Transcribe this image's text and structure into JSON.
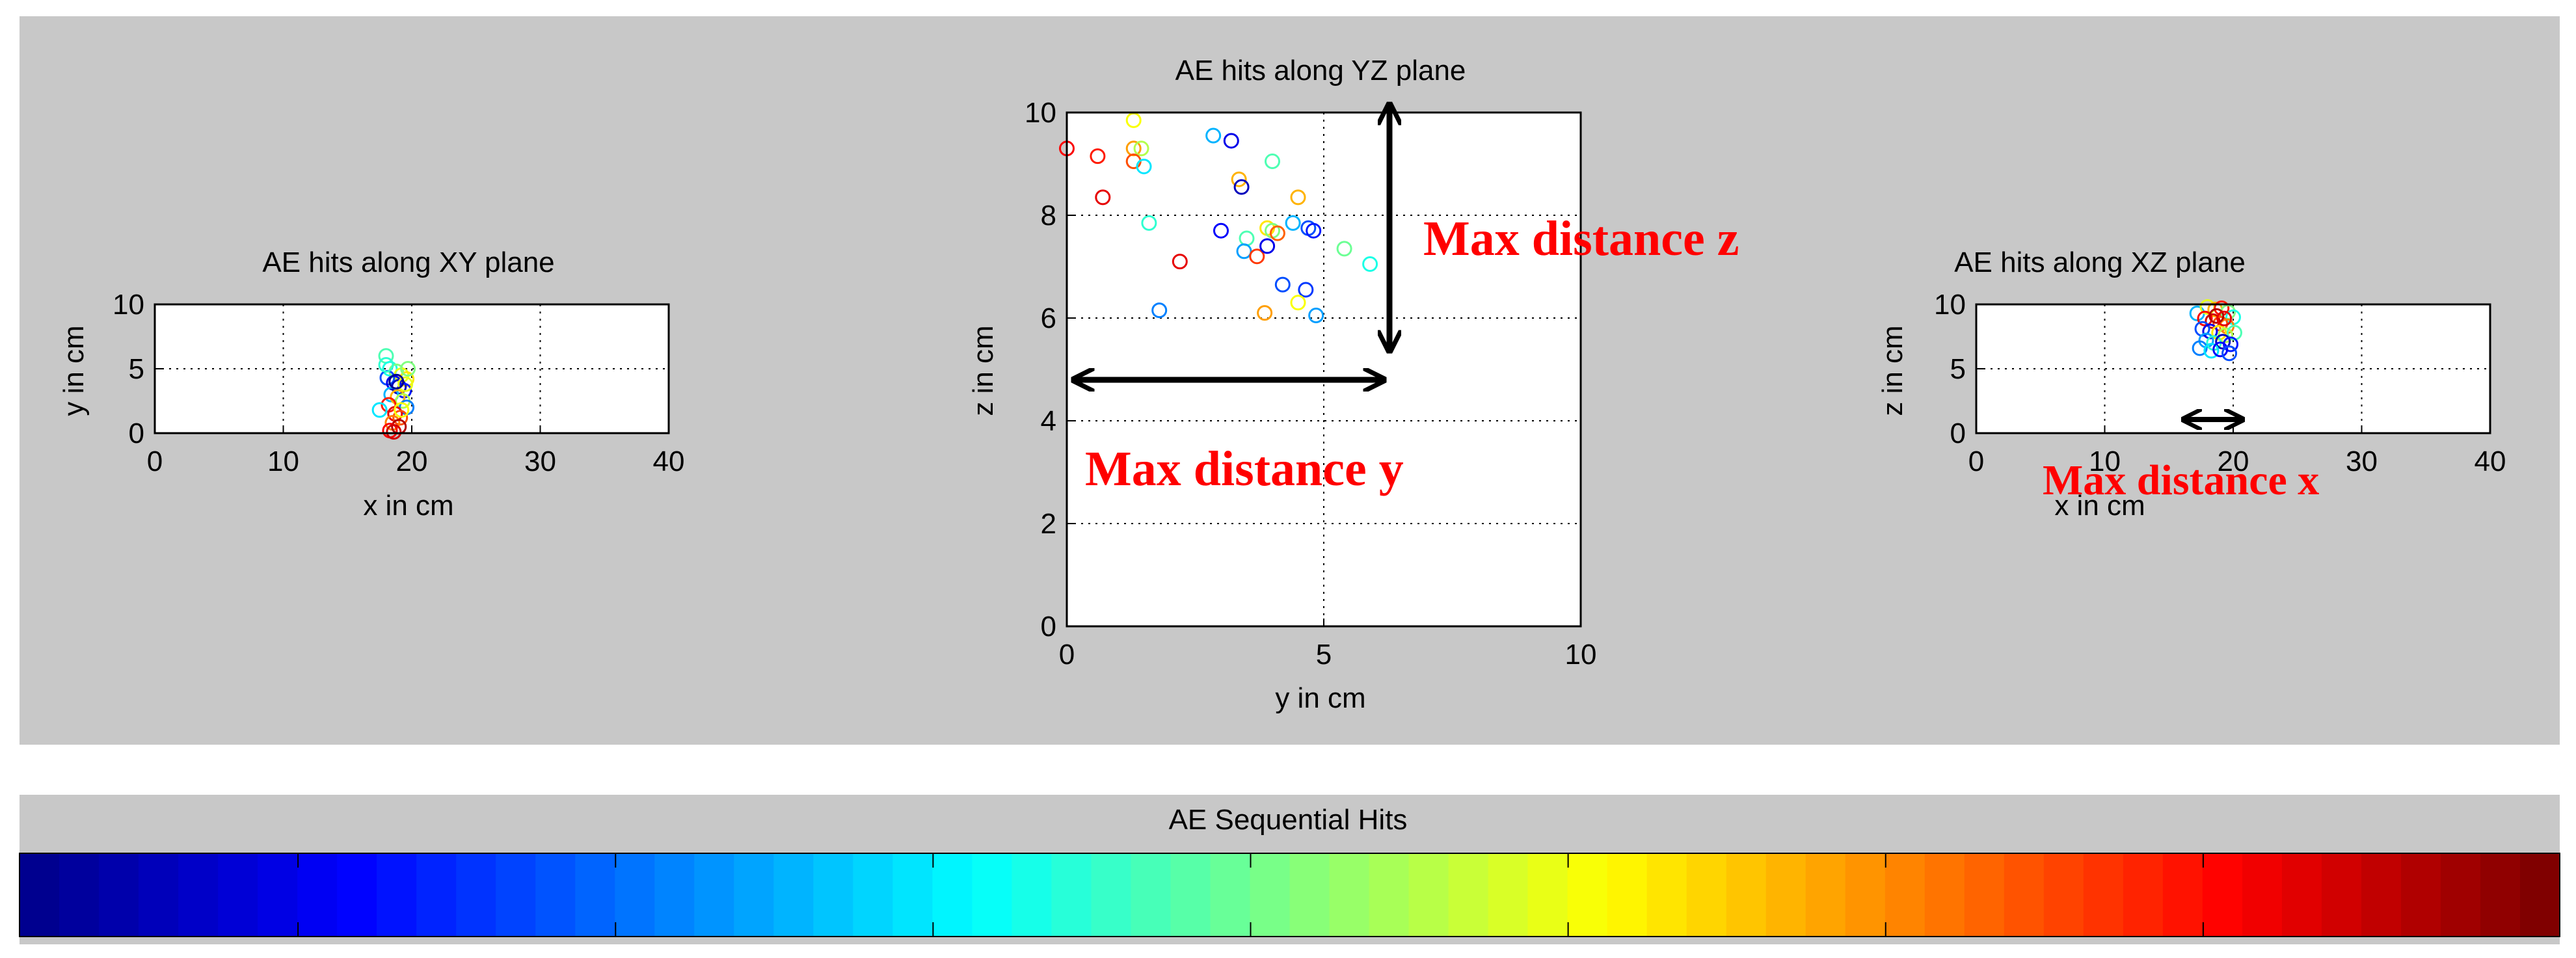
{
  "figure": {
    "colorbar_title": "AE Sequential Hits",
    "colorbar_stops": [
      "#00008f",
      "#0000ff",
      "#0080ff",
      "#00ffff",
      "#80ff80",
      "#ffff00",
      "#ff8000",
      "#ff0000",
      "#800000"
    ],
    "annotation_color": "#ff0000",
    "colors": {
      "panel_bg": "#c8c8c8",
      "axes_bg": "#ffffff",
      "arrow": "#000000"
    },
    "annotations": {
      "max_distance_z": "Max distance z",
      "max_distance_y": "Max distance y",
      "max_distance_x": "Max distance x"
    }
  },
  "chart_data": [
    {
      "id": "xy",
      "type": "scatter",
      "title": "AE hits along XY plane",
      "xlabel": "x in cm",
      "ylabel": "y in cm",
      "xlim": [
        0,
        40
      ],
      "ylim": [
        0,
        10
      ],
      "xticks": [
        0,
        10,
        20,
        30,
        40
      ],
      "yticks": [
        0,
        5,
        10
      ],
      "grid": true,
      "points": [
        [
          18.0,
          6.0,
          0.45
        ],
        [
          18.3,
          5.0,
          0.4
        ],
        [
          18.8,
          4.8,
          0.5
        ],
        [
          19.2,
          4.5,
          0.6
        ],
        [
          19.6,
          4.2,
          0.65
        ],
        [
          18.1,
          4.3,
          0.2
        ],
        [
          18.6,
          3.9,
          0.1
        ],
        [
          19.0,
          3.6,
          0.05
        ],
        [
          19.4,
          3.3,
          0.15
        ],
        [
          18.4,
          3.0,
          0.3
        ],
        [
          18.9,
          2.8,
          0.7
        ],
        [
          19.3,
          2.5,
          0.55
        ],
        [
          19.6,
          2.0,
          0.25
        ],
        [
          18.2,
          2.2,
          0.85
        ],
        [
          17.5,
          1.8,
          0.35
        ],
        [
          18.7,
          1.5,
          0.9
        ],
        [
          19.1,
          1.2,
          0.8
        ],
        [
          18.5,
          0.8,
          0.75
        ],
        [
          19.0,
          0.5,
          0.95
        ],
        [
          18.3,
          0.2,
          0.88
        ],
        [
          19.5,
          3.8,
          0.6
        ],
        [
          18.0,
          5.3,
          0.42
        ],
        [
          19.7,
          5.0,
          0.5
        ],
        [
          18.8,
          4.0,
          0.0
        ],
        [
          19.2,
          1.8,
          0.62
        ],
        [
          18.6,
          0.1,
          0.92
        ]
      ]
    },
    {
      "id": "yz",
      "type": "scatter",
      "title": "AE hits along YZ plane",
      "xlabel": "y in cm",
      "ylabel": "z in cm",
      "xlim": [
        0,
        10
      ],
      "ylim": [
        0,
        10
      ],
      "xticks": [
        0,
        5,
        10
      ],
      "yticks": [
        0,
        2,
        4,
        6,
        8,
        10
      ],
      "grid": true,
      "points": [
        [
          1.3,
          9.85,
          0.62
        ],
        [
          0.0,
          9.3,
          0.88
        ],
        [
          0.6,
          9.15,
          0.85
        ],
        [
          1.3,
          9.3,
          0.72
        ],
        [
          1.45,
          9.3,
          0.55
        ],
        [
          1.3,
          9.05,
          0.8
        ],
        [
          1.5,
          8.95,
          0.35
        ],
        [
          2.85,
          9.55,
          0.3
        ],
        [
          3.2,
          9.45,
          0.1
        ],
        [
          4.0,
          9.05,
          0.45
        ],
        [
          3.35,
          8.7,
          0.7
        ],
        [
          3.4,
          8.55,
          0.05
        ],
        [
          0.7,
          8.35,
          0.9
        ],
        [
          4.5,
          8.35,
          0.7
        ],
        [
          1.6,
          7.85,
          0.42
        ],
        [
          3.0,
          7.7,
          0.12
        ],
        [
          3.5,
          7.55,
          0.45
        ],
        [
          3.9,
          7.75,
          0.65
        ],
        [
          4.0,
          7.7,
          0.5
        ],
        [
          4.1,
          7.65,
          0.78
        ],
        [
          4.4,
          7.85,
          0.3
        ],
        [
          4.7,
          7.75,
          0.2
        ],
        [
          4.8,
          7.7,
          0.15
        ],
        [
          3.45,
          7.3,
          0.28
        ],
        [
          3.7,
          7.2,
          0.82
        ],
        [
          3.9,
          7.4,
          0.1
        ],
        [
          5.4,
          7.35,
          0.48
        ],
        [
          5.9,
          7.05,
          0.4
        ],
        [
          2.2,
          7.1,
          0.9
        ],
        [
          4.2,
          6.65,
          0.2
        ],
        [
          4.65,
          6.55,
          0.18
        ],
        [
          4.5,
          6.3,
          0.62
        ],
        [
          1.8,
          6.15,
          0.25
        ],
        [
          3.85,
          6.1,
          0.72
        ],
        [
          4.85,
          6.05,
          0.28
        ]
      ]
    },
    {
      "id": "xz",
      "type": "scatter",
      "title": "AE hits along XZ plane",
      "xlabel": "x in cm",
      "ylabel": "z in cm",
      "xlim": [
        0,
        40
      ],
      "ylim": [
        0,
        10
      ],
      "xticks": [
        0,
        10,
        20,
        30,
        40
      ],
      "yticks": [
        0,
        5,
        10
      ],
      "grid": true,
      "points": [
        [
          17.2,
          9.3,
          0.3
        ],
        [
          18.0,
          9.8,
          0.6
        ],
        [
          18.6,
          9.6,
          0.7
        ],
        [
          19.1,
          9.7,
          0.85
        ],
        [
          19.6,
          9.4,
          0.5
        ],
        [
          20.0,
          9.0,
          0.4
        ],
        [
          17.8,
          8.9,
          0.88
        ],
        [
          18.4,
          8.7,
          0.92
        ],
        [
          19.0,
          8.5,
          0.8
        ],
        [
          19.5,
          8.3,
          0.75
        ],
        [
          17.6,
          8.1,
          0.2
        ],
        [
          18.2,
          7.9,
          0.1
        ],
        [
          18.9,
          7.8,
          0.65
        ],
        [
          19.4,
          7.6,
          0.55
        ],
        [
          20.1,
          7.8,
          0.45
        ],
        [
          17.9,
          7.2,
          0.28
        ],
        [
          18.5,
          7.0,
          0.42
        ],
        [
          19.2,
          7.1,
          0.05
        ],
        [
          19.8,
          6.9,
          0.15
        ],
        [
          17.4,
          6.6,
          0.25
        ],
        [
          18.3,
          6.4,
          0.35
        ],
        [
          19.0,
          6.5,
          0.12
        ],
        [
          19.7,
          6.2,
          0.2
        ],
        [
          18.7,
          9.1,
          0.95
        ],
        [
          19.3,
          8.9,
          0.9
        ]
      ]
    }
  ]
}
